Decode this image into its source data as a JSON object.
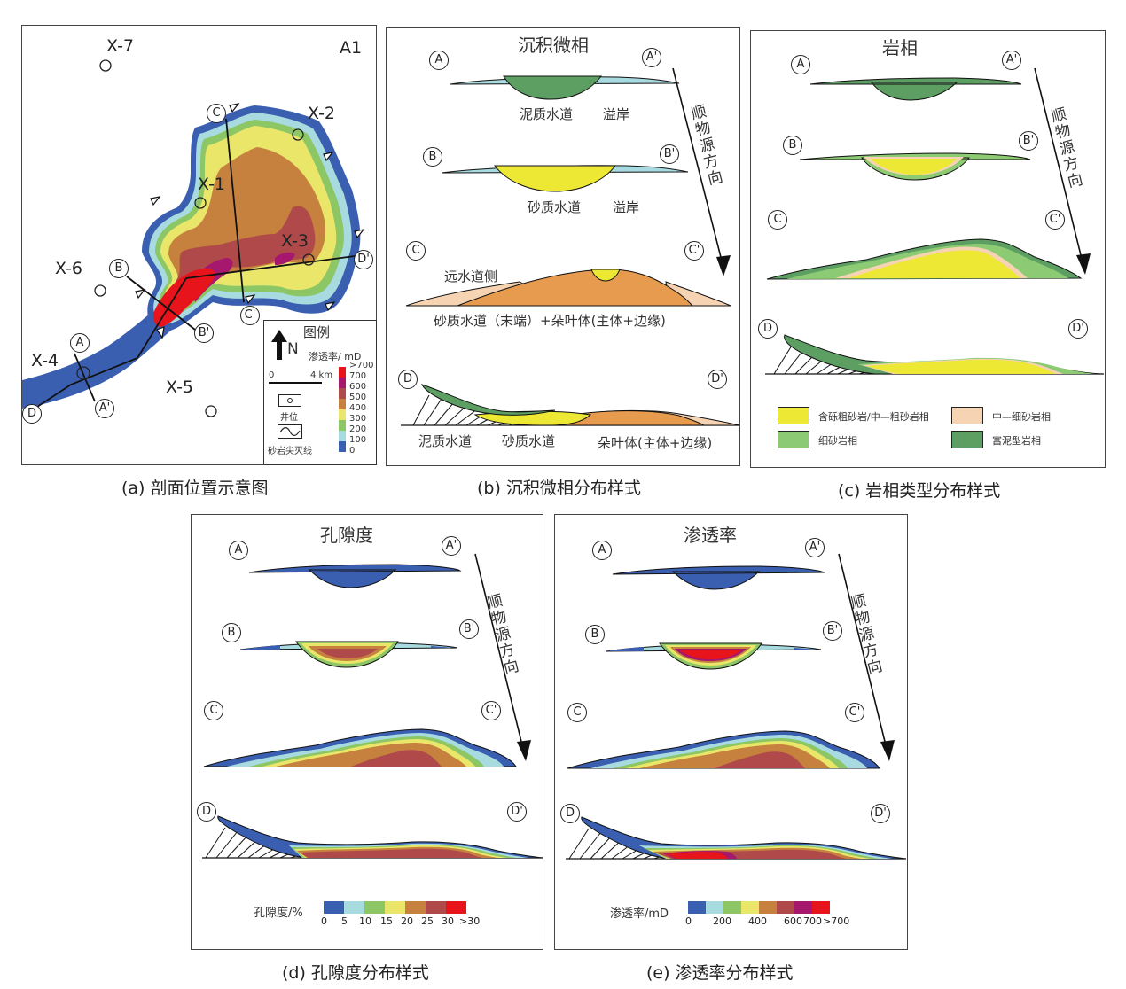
{
  "captions": {
    "a": "(a) 剖面位置示意图",
    "b": "(b) 沉积微相分布样式",
    "c": "(c) 岩相类型分布样式",
    "d": "(d) 孔隙度分布样式",
    "e": "(e) 渗透率分布样式"
  },
  "map": {
    "area_label": "A1",
    "wells": [
      "X-7",
      "X-2",
      "X-1",
      "X-3",
      "X-6",
      "X-4",
      "X-5"
    ],
    "section_points": [
      "A",
      "A'",
      "B",
      "B'",
      "C",
      "C'",
      "D",
      "D'"
    ],
    "legend": {
      "title": "图例",
      "north": "N",
      "perm_title": "渗透率/ mD",
      "scale_zero": "0",
      "scale_end": "4 km",
      "well_label": "井位",
      "pinchout_label": "砂岩尖灭线",
      "perm_ticks": [
        ">700",
        "700",
        "600",
        "500",
        "400",
        "300",
        "200",
        "100",
        "0"
      ],
      "perm_colors": [
        "#e8141b",
        "#a6176e",
        "#b04a4a",
        "#c6813e",
        "#e9e66a",
        "#8cc665",
        "#a7dbe0",
        "#3a5fb0"
      ]
    }
  },
  "facies": {
    "title": "沉积微相",
    "direction": "顺物源方向",
    "A": {
      "start": "A",
      "end": "A'",
      "labels": [
        "泥质水道",
        "溢岸"
      ]
    },
    "B": {
      "start": "B",
      "end": "B'",
      "labels": [
        "砂质水道",
        "溢岸"
      ]
    },
    "C": {
      "start": "C",
      "end": "C'",
      "labels": [
        "远水道侧",
        "砂质水道（末端）+朵叶体(主体+边缘)"
      ]
    },
    "D": {
      "start": "D",
      "end": "D'",
      "labels": [
        "泥质水道",
        "砂质水道",
        "朵叶体(主体+边缘)"
      ]
    }
  },
  "lithofacies": {
    "title": "岩相",
    "direction": "顺物源方向",
    "sections": [
      "A",
      "A'",
      "B",
      "B'",
      "C",
      "C'",
      "D",
      "D'"
    ],
    "legend": [
      {
        "label": "含砾粗砂岩/中—粗砂岩相",
        "color": "#ece833"
      },
      {
        "label": "中—细砂岩相",
        "color": "#f5d3b3"
      },
      {
        "label": "细砂岩相",
        "color": "#8ccb73"
      },
      {
        "label": "富泥型岩相",
        "color": "#5d9e63"
      }
    ]
  },
  "porosity": {
    "title": "孔隙度",
    "direction": "顺物源方向",
    "sections": [
      "A",
      "A'",
      "B",
      "B'",
      "C",
      "C'",
      "D",
      "D'"
    ],
    "legend_title": "孔隙度/%",
    "ticks": [
      "0",
      "5",
      "10",
      "15",
      "20",
      "25",
      "30",
      ">30"
    ],
    "colors": [
      "#3a5fb0",
      "#a7dbe0",
      "#8cc665",
      "#e9e66a",
      "#c6813e",
      "#b04a4a",
      "#e8141b"
    ]
  },
  "permeability": {
    "title": "渗透率",
    "direction": "顺物源方向",
    "sections": [
      "A",
      "A'",
      "B",
      "B'",
      "C",
      "C'",
      "D",
      "D'"
    ],
    "legend_title": "渗透率/mD",
    "ticks": [
      "0",
      "200",
      "400",
      "600",
      "700",
      ">700"
    ],
    "colors": [
      "#3a5fb0",
      "#a7dbe0",
      "#8cc665",
      "#e9e66a",
      "#c6813e",
      "#b04a4a",
      "#a6176e",
      "#e8141b"
    ]
  }
}
